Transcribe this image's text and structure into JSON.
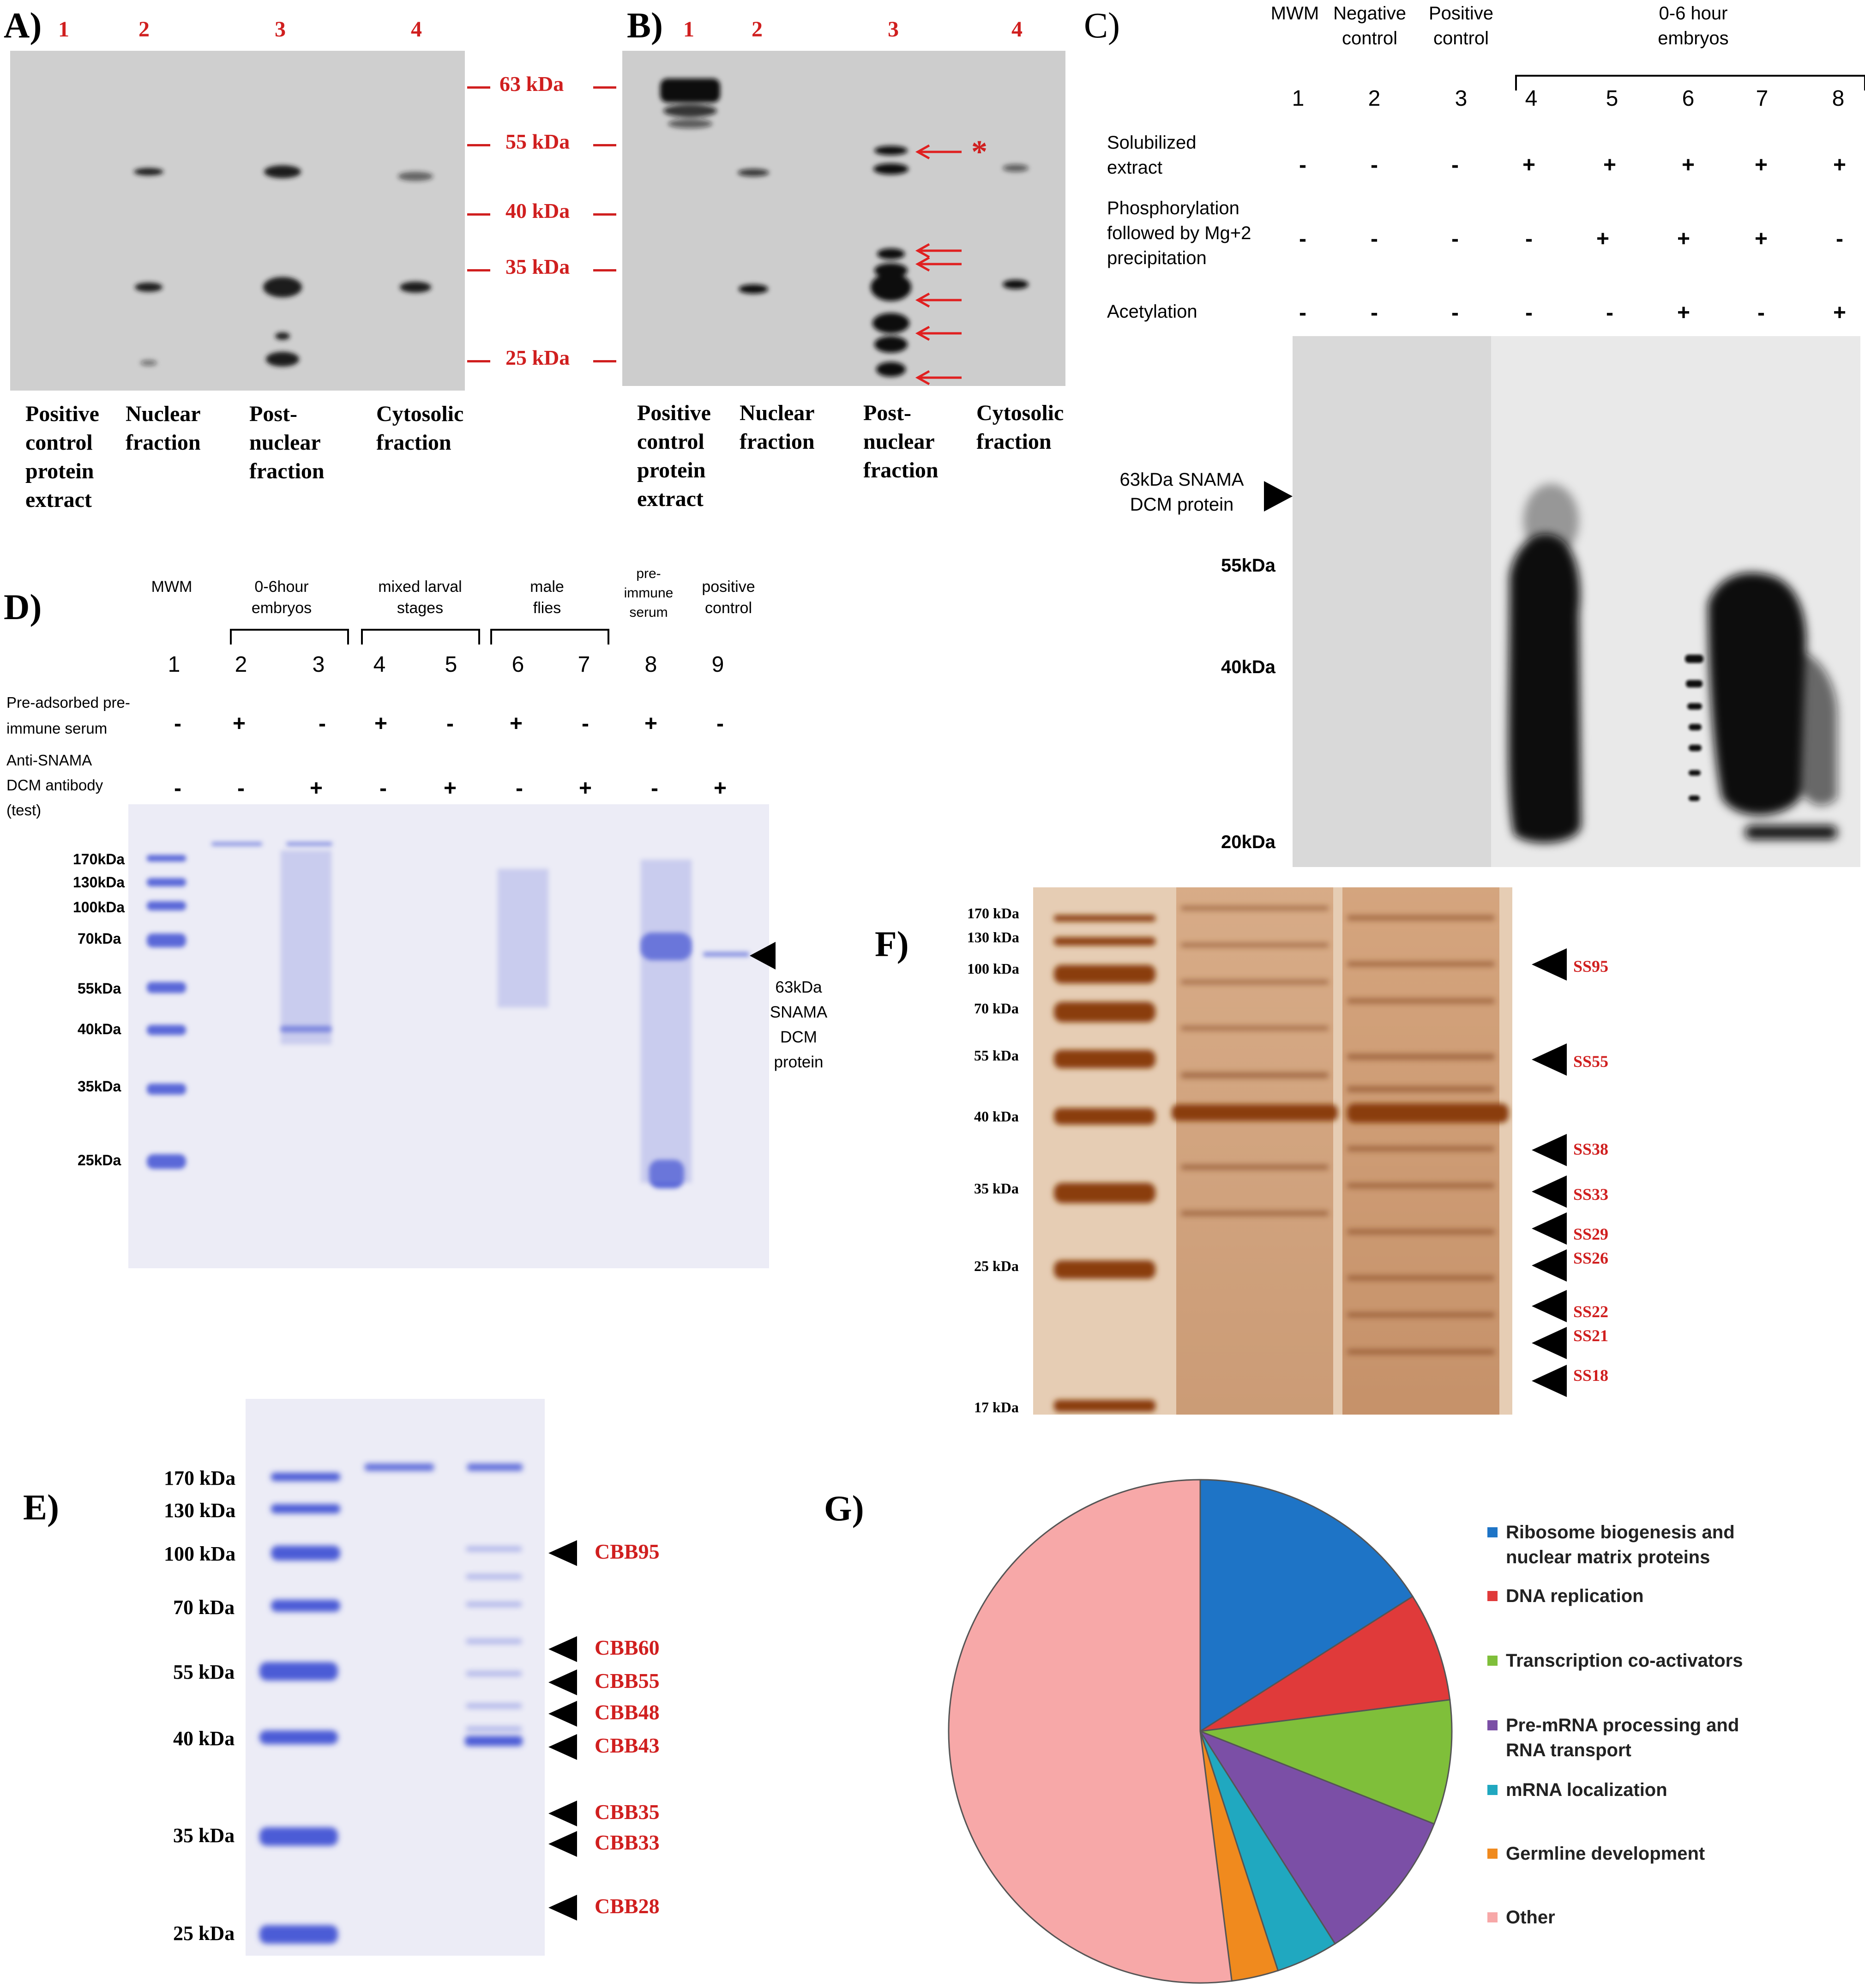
{
  "panelA": {
    "label": "A)",
    "lanes": [
      "1",
      "2",
      "3",
      "4"
    ],
    "captions": [
      "Positive control protein extract",
      "Nuclear fraction",
      "Post-nuclear fraction",
      "Cytosolic fraction"
    ]
  },
  "markers_AB": [
    "63 kDa",
    "55 kDa",
    "40 kDa",
    "35 kDa",
    "25 kDa"
  ],
  "panelB": {
    "label": "B)",
    "lanes": [
      "1",
      "2",
      "3",
      "4"
    ],
    "star": "*",
    "captions": [
      "Positive control protein extract",
      "Nuclear fraction",
      "Post-nuclear fraction",
      "Cytosolic fraction"
    ]
  },
  "panelC": {
    "label": "C)",
    "headers": [
      "MWM",
      "Negative control",
      "Positive control"
    ],
    "group": "0-6 hour embryos",
    "lanes": [
      "1",
      "2",
      "3",
      "4",
      "5",
      "6",
      "7",
      "8"
    ],
    "rows": [
      {
        "label": "Solubilized extract",
        "values": [
          "-",
          "-",
          "-",
          "+",
          "+",
          "+",
          "+",
          "+"
        ]
      },
      {
        "label": "Phosphorylation followed by Mg+2 precipitation",
        "values": [
          "-",
          "-",
          "-",
          "-",
          "+",
          "+",
          "+",
          "-"
        ]
      },
      {
        "label": "Acetylation",
        "values": [
          "-",
          "-",
          "-",
          "-",
          "-",
          "+",
          "-",
          "+"
        ]
      }
    ],
    "arrow_label": "63kDa SNAMA DCM protein",
    "markers": [
      "55kDa",
      "40kDa",
      "20kDa"
    ]
  },
  "panelD": {
    "label": "D)",
    "headers": [
      "MWM",
      "0-6hour embryos",
      "mixed larval stages",
      "male flies",
      "pre-immune serum",
      "positive control"
    ],
    "lanes": [
      "1",
      "2",
      "3",
      "4",
      "5",
      "6",
      "7",
      "8",
      "9"
    ],
    "row1_label": "Pre-adsorbed pre-immune serum",
    "row1": [
      "-",
      "+",
      "-",
      "+",
      "-",
      "+",
      "-",
      "+",
      "-"
    ],
    "row2_label": "Anti-SNAMA DCM antibody (test)",
    "row2": [
      "-",
      "-",
      "+",
      "-",
      "+",
      "-",
      "+",
      "-",
      "+"
    ],
    "markers": [
      "170kDa",
      "130kDa",
      "100kDa",
      "70kDa",
      "55kDa",
      "40kDa",
      "35kDa",
      "25kDa"
    ],
    "arrow_label": "63kDa SNAMA DCM protein"
  },
  "panelE": {
    "label": "E)",
    "markers": [
      "170 kDa",
      "130 kDa",
      "100 kDa",
      "70 kDa",
      "55 kDa",
      "40 kDa",
      "35 kDa",
      "25 kDa"
    ],
    "bands": [
      "CBB95",
      "CBB60",
      "CBB55",
      "CBB48",
      "CBB43",
      "CBB35",
      "CBB33",
      "CBB28"
    ]
  },
  "panelF": {
    "label": "F)",
    "markers": [
      "170 kDa",
      "130 kDa",
      "100 kDa",
      "70 kDa",
      "55 kDa",
      "40 kDa",
      "35 kDa",
      "25 kDa",
      "17 kDa"
    ],
    "bands": [
      "SS95",
      "SS55",
      "SS38",
      "SS33",
      "SS29",
      "SS26",
      "SS22",
      "SS21",
      "SS18"
    ]
  },
  "panelG": {
    "label": "G)",
    "chart_data": {
      "type": "pie",
      "title": "",
      "slices": [
        {
          "name": "Ribosome biogenesis and nuclear matrix proteins",
          "value": 16,
          "color": "#1e74c6"
        },
        {
          "name": "DNA replication",
          "value": 7,
          "color": "#e03a3a"
        },
        {
          "name": "Transcription co-activators",
          "value": 8,
          "color": "#7fbf3a"
        },
        {
          "name": "Pre-mRNA processing and RNA transport",
          "value": 10,
          "color": "#7b4fa6"
        },
        {
          "name": "mRNA localization",
          "value": 4,
          "color": "#20a8c0"
        },
        {
          "name": "Germline development",
          "value": 3,
          "color": "#f08a1e"
        },
        {
          "name": "Other",
          "value": 52,
          "color": "#f7a8a8"
        }
      ],
      "legend_position": "right"
    }
  }
}
